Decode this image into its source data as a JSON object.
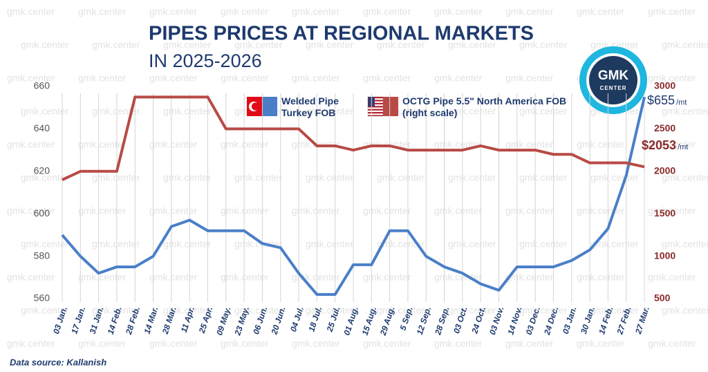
{
  "chart_data": {
    "type": "line",
    "title": "PIPES PRICES AT REGIONAL MARKETS",
    "subtitle": "IN 2025-2026",
    "source": "Data source: Kallanish",
    "logo": {
      "top": "GMK",
      "bottom": "CENTER"
    },
    "watermark": "gmk.center",
    "unit": "/mt",
    "categories": [
      "03 Jan.",
      "17 Jan.",
      "31 Jan.",
      "14 Feb.",
      "28 Feb.",
      "14 Mar.",
      "28 Mar.",
      "11 Apr.",
      "25 Apr.",
      "09 May.",
      "23 May.",
      "06 Jun.",
      "20 Jun.",
      "04 Jul.",
      "18 Jul.",
      "25 Jul.",
      "01 Aug.",
      "15 Aug.",
      "29 Aug.",
      "5 Sep.",
      "12 Sep.",
      "28 Sep.",
      "03 Oct.",
      "24 Oct.",
      "03 Nov.",
      "14 Nov.",
      "03 Dec.",
      "24 Dec.",
      "03 Jan.",
      "30 Jan.",
      "14 Feb.",
      "27 Feb.",
      "27 Mar."
    ],
    "series": [
      {
        "name": "Welded Pipe Turkey FOB",
        "color": "#4a7fc8",
        "axis": "y",
        "values": [
          590,
          580,
          572,
          575,
          575,
          580,
          594,
          597,
          592,
          592,
          592,
          586,
          584,
          572,
          562,
          562,
          576,
          576,
          592,
          592,
          580,
          575,
          572,
          567,
          564,
          575,
          575,
          575,
          578,
          583,
          593,
          618,
          655
        ],
        "value_labels": [
          null,
          null,
          null,
          null,
          null,
          null,
          null,
          null,
          null,
          null,
          null,
          null,
          null,
          null,
          null,
          null,
          null,
          null,
          null,
          null,
          null,
          null,
          null,
          null,
          null,
          null,
          null,
          null,
          null,
          null,
          null,
          null,
          "$655"
        ]
      },
      {
        "name": "OCTG Pipe 5.5\" North America FOB (right scale)",
        "color": "#b84a45",
        "axis": "y2",
        "values": [
          1900,
          2000,
          2000,
          2000,
          2875,
          2875,
          2875,
          2875,
          2875,
          2500,
          2500,
          2500,
          2500,
          2500,
          2300,
          2300,
          2250,
          2300,
          2300,
          2250,
          2250,
          2250,
          2250,
          2300,
          2250,
          2250,
          2250,
          2200,
          2200,
          2100,
          2100,
          2100,
          2053
        ],
        "value_labels": [
          null,
          null,
          null,
          null,
          null,
          null,
          null,
          null,
          null,
          null,
          null,
          null,
          null,
          null,
          null,
          null,
          null,
          null,
          null,
          null,
          null,
          null,
          null,
          null,
          null,
          null,
          null,
          null,
          null,
          null,
          null,
          null,
          "$2053"
        ]
      }
    ],
    "ylim": [
      560,
      660
    ],
    "yticks": [
      560,
      580,
      600,
      620,
      640,
      660
    ],
    "y2lim": [
      500,
      3000
    ],
    "y2ticks": [
      500,
      1000,
      1500,
      2000,
      2500,
      3000
    ],
    "grid": "x"
  }
}
